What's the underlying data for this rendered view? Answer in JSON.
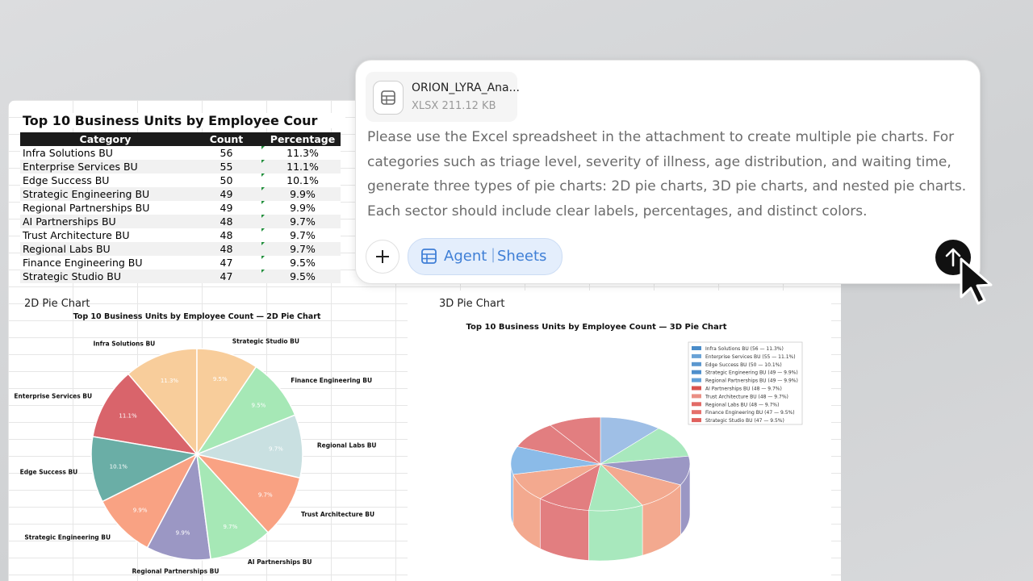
{
  "sheet": {
    "title": "Top 10 Business Units by Employee Cour",
    "columns": [
      "Category",
      "Count",
      "Percentage"
    ],
    "rows": [
      [
        "Infra Solutions BU",
        "56",
        "11.3%"
      ],
      [
        "Enterprise Services BU",
        "55",
        "11.1%"
      ],
      [
        "Edge Success BU",
        "50",
        "10.1%"
      ],
      [
        "Strategic Engineering BU",
        "49",
        "9.9%"
      ],
      [
        "Regional Partnerships BU",
        "49",
        "9.9%"
      ],
      [
        "AI Partnerships BU",
        "48",
        "9.7%"
      ],
      [
        "Trust Architecture BU",
        "48",
        "9.7%"
      ],
      [
        "Regional Labs BU",
        "48",
        "9.7%"
      ],
      [
        "Finance Engineering BU",
        "47",
        "9.5%"
      ],
      [
        "Strategic Studio BU",
        "47",
        "9.5%"
      ]
    ]
  },
  "pie_2d": {
    "section": "2D Pie Chart",
    "type": "pie",
    "title": "Top 10 Business Units by Employee Count — 2D Pie Chart",
    "categories": [
      "Infra Solutions BU",
      "Enterprise Services BU",
      "Edge Success BU",
      "Strategic Engineering BU",
      "Regional Partnerships BU",
      "AI Partnerships BU",
      "Trust Architecture BU",
      "Regional Labs BU",
      "Finance Engineering BU",
      "Strategic Studio BU"
    ],
    "values": [
      11.3,
      11.1,
      10.1,
      9.9,
      9.9,
      9.7,
      9.7,
      9.7,
      9.5,
      9.5
    ],
    "value_labels": [
      "11.3%",
      "11.1%",
      "10.1%",
      "9.9%",
      "9.9%",
      "9.7%",
      "9.7%",
      "9.7%",
      "9.5%",
      "9.5%"
    ],
    "colors": [
      "#f8cd9b",
      "#d9646b",
      "#6aaea6",
      "#f9a283",
      "#9b97c4",
      "#a6e8b6",
      "#f9a283",
      "#c9e0e1",
      "#a6e8b6",
      "#f8cd9b"
    ]
  },
  "pie_3d": {
    "section": "3D Pie Chart",
    "type": "pie3d",
    "title": "Top 10 Business Units by Employee Count — 3D Pie Chart",
    "values": [
      11.3,
      11.1,
      10.1,
      9.9,
      9.9,
      9.7,
      9.7,
      9.7,
      9.5,
      9.5
    ],
    "legend": [
      "Infra Solutions BU (56 — 11.3%)",
      "Enterprise Services BU (55 — 11.1%)",
      "Edge Success BU (50 — 10.1%)",
      "Strategic Engineering BU (49 — 9.9%)",
      "Regional Partnerships BU (49 — 9.9%)",
      "AI Partnerships BU (48 — 9.7%)",
      "Trust Architecture BU (48 — 9.7%)",
      "Regional Labs BU (48 — 9.7%)",
      "Finance Engineering BU (47 — 9.5%)",
      "Strategic Studio BU (47 — 9.5%)"
    ],
    "legend_colors": [
      "#4a8cc9",
      "#6aa3d6",
      "#5b97cf",
      "#4f8fcc",
      "#62a0d8",
      "#d9534f",
      "#ea8f85",
      "#e26a66",
      "#e56f6b",
      "#e0605c"
    ],
    "colors": [
      "#9fbfe6",
      "#a8e8bd",
      "#9b97c4",
      "#f3a98f",
      "#a8e8bd",
      "#e27e80",
      "#f3a98f",
      "#8bbbe8",
      "#e27e80",
      "#e27e80"
    ]
  },
  "prompt": {
    "file_name": "ORION_LYRA_Ana...",
    "file_meta": "XLSX 211.12 KB",
    "lines": [
      "Please use the Excel spreadsheet in the attachment to create multiple pie charts. For",
      "categories such as triage level, severity of illness, age distribution, and waiting time,",
      "generate three types of pie charts: 2D pie charts, 3D pie charts, and nested pie charts.",
      "Each sector should include clear labels, percentages, and distinct colors."
    ],
    "agent": "Agent",
    "mode": "Sheets"
  }
}
